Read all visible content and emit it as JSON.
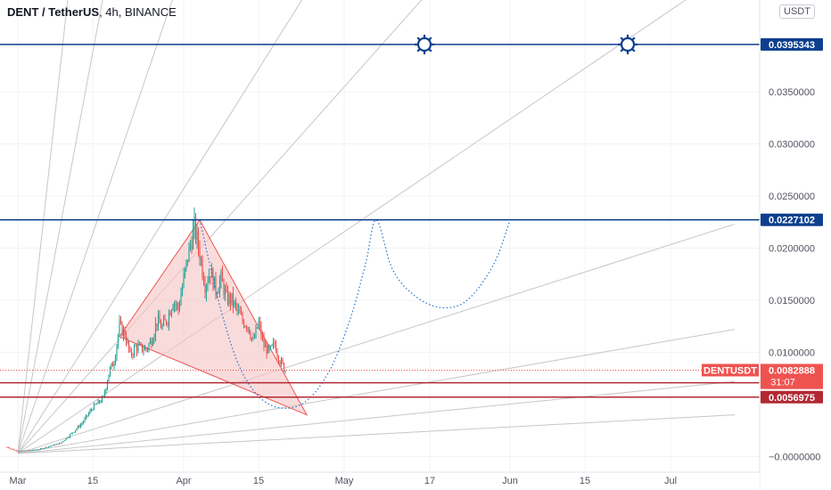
{
  "header": {
    "symbol": "DENT / TetherUS",
    "title_suffix": ", 4h, BINANCE",
    "currency": "USDT"
  },
  "colors": {
    "bull": "#26a69a",
    "bear": "#ef5350",
    "level_blue": "#0d3f8f",
    "level_red": "#b22833",
    "projection": "#2e7dd1",
    "triangle_fill": "#f6c3c3",
    "fan": "#c7c7c7",
    "price_tag": "#ef5350"
  },
  "chart_data": {
    "type": "candlestick",
    "title": "DENT / TetherUS, 4h, BINANCE",
    "ylim": [
      -0.0015,
      0.0438
    ],
    "y_ticks": [
      "0.0350000",
      "0.0300000",
      "0.0250000",
      "0.0200000",
      "0.0150000",
      "0.0100000",
      "−0.0000000"
    ],
    "x_ticks": [
      "Mar",
      "15",
      "Apr",
      "15",
      "May",
      "17",
      "Jun",
      "15",
      "Jul"
    ],
    "x_tick_days": [
      0,
      14,
      31,
      45,
      61,
      77,
      92,
      106,
      122
    ],
    "horizontal_levels": [
      {
        "value": 0.0395343,
        "label": "0.0395343",
        "color": "blue"
      },
      {
        "value": 0.0227102,
        "label": "0.0227102",
        "color": "blue"
      },
      {
        "value": 0.0070758,
        "label": "0.0070758",
        "color": "red"
      },
      {
        "value": 0.0056975,
        "label": "0.0056975",
        "color": "red"
      }
    ],
    "current_price": {
      "symbol": "DENTUSDT",
      "value": 0.0082888,
      "label": "0.0082888",
      "countdown": "31:07"
    },
    "price_path": [
      [
        -2,
        0.0009
      ],
      [
        0,
        0.0005
      ],
      [
        4,
        0.0007
      ],
      [
        8,
        0.0013
      ],
      [
        10,
        0.0022
      ],
      [
        12,
        0.0032
      ],
      [
        14,
        0.0047
      ],
      [
        16,
        0.0056
      ],
      [
        17,
        0.008
      ],
      [
        18,
        0.0092
      ],
      [
        19,
        0.0125
      ],
      [
        20,
        0.0118
      ],
      [
        21,
        0.0097
      ],
      [
        22,
        0.0105
      ],
      [
        24,
        0.0103
      ],
      [
        25,
        0.0112
      ],
      [
        26,
        0.013
      ],
      [
        27,
        0.0124
      ],
      [
        28,
        0.0133
      ],
      [
        29,
        0.015
      ],
      [
        30,
        0.0142
      ],
      [
        31,
        0.017
      ],
      [
        32,
        0.0198
      ],
      [
        33,
        0.022
      ],
      [
        34,
        0.0195
      ],
      [
        35,
        0.0165
      ],
      [
        36,
        0.0178
      ],
      [
        37,
        0.016
      ],
      [
        38,
        0.017
      ],
      [
        39,
        0.0152
      ],
      [
        40,
        0.015
      ],
      [
        41,
        0.014
      ],
      [
        42,
        0.013
      ],
      [
        43,
        0.0126
      ],
      [
        44,
        0.011
      ],
      [
        45,
        0.0128
      ],
      [
        46,
        0.0106
      ],
      [
        47,
        0.01
      ],
      [
        48,
        0.0108
      ],
      [
        49,
        0.0092
      ],
      [
        50,
        0.0083
      ]
    ],
    "triangle": [
      [
        34,
        0.0227
      ],
      [
        19,
        0.0115
      ],
      [
        54,
        0.004
      ]
    ],
    "projection_path": [
      [
        34,
        0.0227
      ],
      [
        38,
        0.014
      ],
      [
        42,
        0.008
      ],
      [
        47,
        0.005
      ],
      [
        53,
        0.005
      ],
      [
        58,
        0.008
      ],
      [
        62,
        0.013
      ],
      [
        65,
        0.0185
      ],
      [
        67,
        0.0227
      ],
      [
        70,
        0.018
      ],
      [
        74,
        0.0155
      ],
      [
        79,
        0.0143
      ],
      [
        84,
        0.015
      ],
      [
        89,
        0.0185
      ],
      [
        92,
        0.0227
      ]
    ],
    "sun_markers": [
      [
        76,
        0.0395343
      ],
      [
        114,
        0.0395343
      ]
    ],
    "fan_origin": [
      0,
      0.0003
    ],
    "fan_targets": [
      [
        10,
        0.047
      ],
      [
        17,
        0.047
      ],
      [
        31,
        0.047
      ],
      [
        57,
        0.047
      ],
      [
        81,
        0.047
      ],
      [
        134,
        0.047
      ],
      [
        134,
        0.0223
      ],
      [
        134,
        0.0122
      ],
      [
        134,
        0.0072
      ],
      [
        134,
        0.004
      ]
    ]
  }
}
